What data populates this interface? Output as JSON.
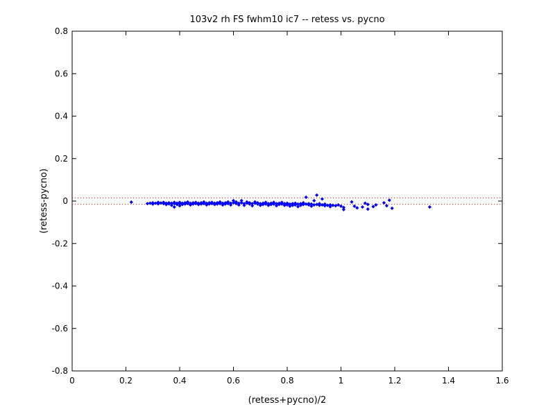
{
  "chart_data": {
    "type": "scatter",
    "title": "103v2 rh FS fwhm10 ic7 -- retess vs. pycno",
    "xlabel": "(retess+pycno)/2",
    "ylabel": "(retess-pycno)",
    "xlim": [
      0,
      1.6
    ],
    "ylim": [
      -0.8,
      0.8
    ],
    "xticks": [
      0,
      0.2,
      0.4,
      0.6,
      0.8,
      1,
      1.2,
      1.4,
      1.6
    ],
    "yticks": [
      -0.8,
      -0.6,
      -0.4,
      -0.2,
      0,
      0.2,
      0.4,
      0.6,
      0.8
    ],
    "xtick_labels": [
      "0",
      "0.2",
      "0.4",
      "0.6",
      "0.8",
      "1",
      "1.2",
      "1.4",
      "1.6"
    ],
    "ytick_labels": [
      "-0.8",
      "-0.6",
      "-0.4",
      "-0.2",
      "0",
      "0.2",
      "0.4",
      "0.6",
      "0.8"
    ],
    "grid": false,
    "marker_color": "#0000ff",
    "reference_line_color": "#ff0000",
    "reference_lines_y": [
      0.015,
      -0.015
    ],
    "points": [
      [
        0.22,
        -0.005
      ],
      [
        0.28,
        -0.012
      ],
      [
        0.29,
        -0.01
      ],
      [
        0.3,
        -0.008
      ],
      [
        0.3,
        -0.014
      ],
      [
        0.31,
        -0.01
      ],
      [
        0.32,
        -0.006
      ],
      [
        0.32,
        -0.013
      ],
      [
        0.33,
        -0.009
      ],
      [
        0.34,
        -0.012
      ],
      [
        0.34,
        -0.006
      ],
      [
        0.35,
        -0.01
      ],
      [
        0.35,
        -0.016
      ],
      [
        0.36,
        -0.008
      ],
      [
        0.36,
        -0.013
      ],
      [
        0.37,
        -0.01
      ],
      [
        0.37,
        -0.02
      ],
      [
        0.38,
        -0.012
      ],
      [
        0.38,
        -0.006
      ],
      [
        0.38,
        -0.028
      ],
      [
        0.39,
        -0.01
      ],
      [
        0.39,
        -0.016
      ],
      [
        0.4,
        -0.012
      ],
      [
        0.4,
        -0.006
      ],
      [
        0.4,
        -0.022
      ],
      [
        0.41,
        -0.01
      ],
      [
        0.41,
        -0.016
      ],
      [
        0.42,
        -0.008
      ],
      [
        0.42,
        -0.014
      ],
      [
        0.43,
        -0.012
      ],
      [
        0.43,
        -0.004
      ],
      [
        0.44,
        -0.01
      ],
      [
        0.44,
        -0.018
      ],
      [
        0.45,
        -0.008
      ],
      [
        0.45,
        -0.014
      ],
      [
        0.46,
        -0.012
      ],
      [
        0.46,
        -0.006
      ],
      [
        0.47,
        -0.01
      ],
      [
        0.47,
        -0.016
      ],
      [
        0.48,
        -0.008
      ],
      [
        0.48,
        -0.014
      ],
      [
        0.49,
        -0.012
      ],
      [
        0.49,
        -0.004
      ],
      [
        0.5,
        -0.01
      ],
      [
        0.5,
        -0.018
      ],
      [
        0.51,
        -0.008
      ],
      [
        0.51,
        -0.014
      ],
      [
        0.52,
        -0.012
      ],
      [
        0.52,
        -0.006
      ],
      [
        0.53,
        -0.01
      ],
      [
        0.53,
        -0.016
      ],
      [
        0.54,
        -0.008
      ],
      [
        0.54,
        -0.014
      ],
      [
        0.55,
        -0.012
      ],
      [
        0.55,
        -0.004
      ],
      [
        0.56,
        -0.01
      ],
      [
        0.56,
        -0.018
      ],
      [
        0.57,
        -0.008
      ],
      [
        0.57,
        -0.014
      ],
      [
        0.58,
        -0.012
      ],
      [
        0.58,
        -0.004
      ],
      [
        0.59,
        -0.01
      ],
      [
        0.59,
        -0.018
      ],
      [
        0.6,
        -0.008
      ],
      [
        0.6,
        0.002
      ],
      [
        0.61,
        -0.012
      ],
      [
        0.61,
        -0.004
      ],
      [
        0.62,
        -0.01
      ],
      [
        0.62,
        -0.018
      ],
      [
        0.63,
        -0.008
      ],
      [
        0.63,
        0.002
      ],
      [
        0.64,
        -0.012
      ],
      [
        0.64,
        -0.02
      ],
      [
        0.65,
        -0.01
      ],
      [
        0.65,
        -0.004
      ],
      [
        0.66,
        -0.014
      ],
      [
        0.66,
        -0.008
      ],
      [
        0.67,
        -0.012
      ],
      [
        0.67,
        -0.022
      ],
      [
        0.68,
        -0.01
      ],
      [
        0.68,
        -0.004
      ],
      [
        0.69,
        -0.014
      ],
      [
        0.69,
        -0.008
      ],
      [
        0.7,
        -0.012
      ],
      [
        0.7,
        -0.02
      ],
      [
        0.71,
        -0.01
      ],
      [
        0.71,
        -0.016
      ],
      [
        0.72,
        -0.014
      ],
      [
        0.72,
        -0.006
      ],
      [
        0.73,
        -0.012
      ],
      [
        0.73,
        -0.02
      ],
      [
        0.74,
        -0.01
      ],
      [
        0.74,
        -0.016
      ],
      [
        0.75,
        -0.014
      ],
      [
        0.75,
        -0.006
      ],
      [
        0.76,
        -0.012
      ],
      [
        0.76,
        -0.022
      ],
      [
        0.77,
        -0.01
      ],
      [
        0.77,
        -0.016
      ],
      [
        0.78,
        -0.014
      ],
      [
        0.78,
        -0.006
      ],
      [
        0.79,
        -0.012
      ],
      [
        0.79,
        -0.02
      ],
      [
        0.8,
        -0.01
      ],
      [
        0.8,
        -0.018
      ],
      [
        0.81,
        -0.014
      ],
      [
        0.81,
        -0.024
      ],
      [
        0.82,
        -0.012
      ],
      [
        0.82,
        -0.02
      ],
      [
        0.83,
        -0.01
      ],
      [
        0.83,
        -0.018
      ],
      [
        0.84,
        -0.014
      ],
      [
        0.84,
        -0.026
      ],
      [
        0.85,
        -0.012
      ],
      [
        0.85,
        -0.02
      ],
      [
        0.86,
        -0.016
      ],
      [
        0.86,
        -0.008
      ],
      [
        0.87,
        -0.014
      ],
      [
        0.87,
        0.018
      ],
      [
        0.88,
        -0.018
      ],
      [
        0.88,
        -0.012
      ],
      [
        0.89,
        -0.014
      ],
      [
        0.89,
        -0.024
      ],
      [
        0.9,
        -0.018
      ],
      [
        0.9,
        0.002
      ],
      [
        0.91,
        -0.016
      ],
      [
        0.91,
        0.028
      ],
      [
        0.92,
        -0.02
      ],
      [
        0.92,
        -0.012
      ],
      [
        0.93,
        -0.018
      ],
      [
        0.93,
        0.01
      ],
      [
        0.94,
        -0.022
      ],
      [
        0.94,
        -0.014
      ],
      [
        0.95,
        -0.02
      ],
      [
        0.96,
        -0.018
      ],
      [
        0.96,
        -0.026
      ],
      [
        0.97,
        -0.02
      ],
      [
        0.98,
        -0.022
      ],
      [
        0.99,
        -0.018
      ],
      [
        1.0,
        -0.024
      ],
      [
        1.01,
        -0.03
      ],
      [
        1.01,
        -0.04
      ],
      [
        1.04,
        -0.004
      ],
      [
        1.05,
        -0.024
      ],
      [
        1.06,
        -0.032
      ],
      [
        1.08,
        -0.028
      ],
      [
        1.09,
        -0.01
      ],
      [
        1.1,
        -0.016
      ],
      [
        1.1,
        -0.038
      ],
      [
        1.12,
        -0.026
      ],
      [
        1.13,
        -0.018
      ],
      [
        1.16,
        -0.008
      ],
      [
        1.17,
        -0.022
      ],
      [
        1.18,
        0.004
      ],
      [
        1.19,
        -0.034
      ],
      [
        1.33,
        -0.028
      ]
    ]
  }
}
